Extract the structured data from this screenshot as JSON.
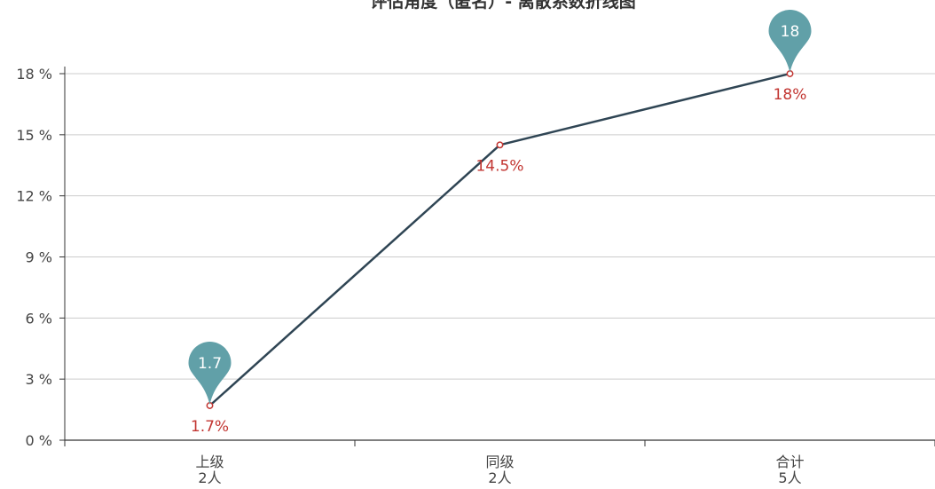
{
  "chart_data": {
    "type": "line",
    "title": "评估角度（匿名）- 离散系数折线图",
    "categories": [
      [
        "上级",
        "2人"
      ],
      [
        "同级",
        "2人"
      ],
      [
        "合计",
        "5人"
      ]
    ],
    "series": [
      {
        "values": [
          1.7,
          14.5,
          18
        ],
        "data_labels": [
          "1.7%",
          "14.5%",
          "18%"
        ]
      }
    ],
    "markers": [
      {
        "category_index": 0,
        "value": 1.7,
        "label": "1.7"
      },
      {
        "category_index": 2,
        "value": 18,
        "label": "18"
      }
    ],
    "yticks": [
      0,
      3,
      6,
      9,
      12,
      15,
      18
    ],
    "ytick_labels": [
      "0 %",
      "3 %",
      "6 %",
      "9 %",
      "12 %",
      "15 %",
      "18 %"
    ],
    "ylim": [
      0,
      18
    ],
    "grid": true,
    "colors": {
      "line": "#2f4554",
      "point": "#c23531",
      "data_label": "#c23531",
      "pin": "#61a0a8",
      "grid": "#cccccc",
      "axis": "#333333"
    }
  }
}
